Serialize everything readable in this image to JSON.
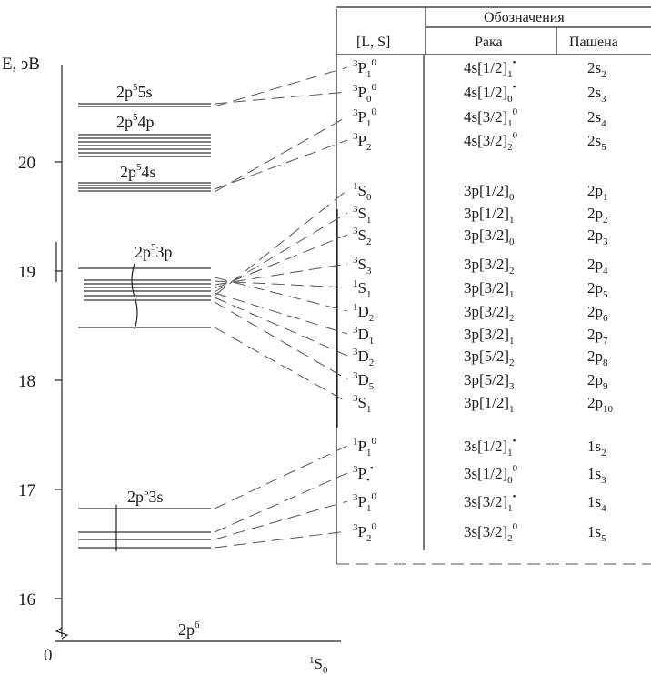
{
  "axis": {
    "ylabel": "E, эВ",
    "ticks": [
      "20",
      "19",
      "18",
      "17",
      "16",
      "0"
    ]
  },
  "configurations": [
    {
      "text": "2p",
      "sup": "5",
      "tail": "5s"
    },
    {
      "text": "2p",
      "sup": "5",
      "tail": "4p"
    },
    {
      "text": "2p",
      "sup": "5",
      "tail": "4s"
    },
    {
      "text": "2p",
      "sup": "5",
      "tail": "3p"
    },
    {
      "text": "2p",
      "sup": "5",
      "tail": "3s"
    },
    {
      "text": "2p",
      "sup": "6",
      "tail": ""
    }
  ],
  "ground_state": {
    "pre": "1",
    "letter": "S",
    "sub": "0"
  },
  "table": {
    "title": "Обозначения",
    "columns": [
      "[L, S]",
      "Рака",
      "Пашена"
    ],
    "rows": [
      {
        "ls_pre": "3",
        "ls": "P",
        "ls_sub": "1",
        "ls_sup": "0",
        "racah": "4s[1/2]",
        "r_sub": "1",
        "r_sup": "•",
        "paschen": "2s",
        "p_sub": "2"
      },
      {
        "ls_pre": "3",
        "ls": "P",
        "ls_sub": "0",
        "ls_sup": "0",
        "racah": "4s[1/2]",
        "r_sub": "0",
        "r_sup": "•",
        "paschen": "2s",
        "p_sub": "3"
      },
      {
        "ls_pre": "3",
        "ls": "P",
        "ls_sub": "1",
        "ls_sup": "0",
        "racah": "4s[3/2]",
        "r_sub": "1",
        "r_sup": "0",
        "paschen": "2s",
        "p_sub": "4"
      },
      {
        "ls_pre": "3",
        "ls": "P",
        "ls_sub": "2",
        "ls_sup": "",
        "racah": "4s[3/2]",
        "r_sub": "2",
        "r_sup": "0",
        "paschen": "2s",
        "p_sub": "5"
      },
      {
        "ls_pre": "1",
        "ls": "S",
        "ls_sub": "0",
        "ls_sup": "",
        "racah": "3p[1/2]",
        "r_sub": "0",
        "r_sup": "",
        "paschen": "2p",
        "p_sub": "1"
      },
      {
        "ls_pre": "3",
        "ls": "S",
        "ls_sub": "1",
        "ls_sup": "",
        "racah": "3p[1/2]",
        "r_sub": "1",
        "r_sup": "",
        "paschen": "2p",
        "p_sub": "2"
      },
      {
        "ls_pre": "3",
        "ls": "S",
        "ls_sub": "2",
        "ls_sup": "",
        "racah": "3p[3/2]",
        "r_sub": "0",
        "r_sup": "",
        "paschen": "2p",
        "p_sub": "3"
      },
      {
        "ls_pre": "3",
        "ls": "S",
        "ls_sub": "3",
        "ls_sup": "",
        "racah": "3p[3/2]",
        "r_sub": "2",
        "r_sup": "",
        "paschen": "2p",
        "p_sub": "4"
      },
      {
        "ls_pre": "1",
        "ls": "S",
        "ls_sub": "1",
        "ls_sup": "",
        "racah": "3p[3/2]",
        "r_sub": "1",
        "r_sup": "",
        "paschen": "2p",
        "p_sub": "5"
      },
      {
        "ls_pre": "1",
        "ls": "D",
        "ls_sub": "2",
        "ls_sup": "",
        "racah": "3p[3/2]",
        "r_sub": "2",
        "r_sup": "",
        "paschen": "2p",
        "p_sub": "6"
      },
      {
        "ls_pre": "3",
        "ls": "D",
        "ls_sub": "1",
        "ls_sup": "",
        "racah": "3p[3/2]",
        "r_sub": "1",
        "r_sup": "",
        "paschen": "2p",
        "p_sub": "7"
      },
      {
        "ls_pre": "3",
        "ls": "D",
        "ls_sub": "2",
        "ls_sup": "",
        "racah": "3p[5/2]",
        "r_sub": "2",
        "r_sup": "",
        "paschen": "2p",
        "p_sub": "8"
      },
      {
        "ls_pre": "3",
        "ls": "D",
        "ls_sub": "5",
        "ls_sup": "",
        "racah": "3p[5/2]",
        "r_sub": "3",
        "r_sup": "",
        "paschen": "2p",
        "p_sub": "9"
      },
      {
        "ls_pre": "3",
        "ls": "S",
        "ls_sub": "1",
        "ls_sup": "",
        "racah": "3p[1/2]",
        "r_sub": "1",
        "r_sup": "",
        "paschen": "2p",
        "p_sub": "10"
      },
      {
        "ls_pre": "1",
        "ls": "P",
        "ls_sub": "1",
        "ls_sup": "0",
        "racah": "3s[1/2]",
        "r_sub": "1",
        "r_sup": "•",
        "paschen": "1s",
        "p_sub": "2"
      },
      {
        "ls_pre": "3",
        "ls": "P",
        "ls_sub": "•",
        "ls_sup": "•",
        "racah": "3s[1/2]",
        "r_sub": "0",
        "r_sup": "0",
        "paschen": "1s",
        "p_sub": "3"
      },
      {
        "ls_pre": "3",
        "ls": "P",
        "ls_sub": "1",
        "ls_sup": "0",
        "racah": "3s[3/2]",
        "r_sub": "1",
        "r_sup": "•",
        "paschen": "1s",
        "p_sub": "4"
      },
      {
        "ls_pre": "3",
        "ls": "P",
        "ls_sub": "2",
        "ls_sup": "0",
        "racah": "3s[3/2]",
        "r_sub": "2",
        "r_sup": "0",
        "paschen": "1s",
        "p_sub": "5"
      }
    ]
  }
}
